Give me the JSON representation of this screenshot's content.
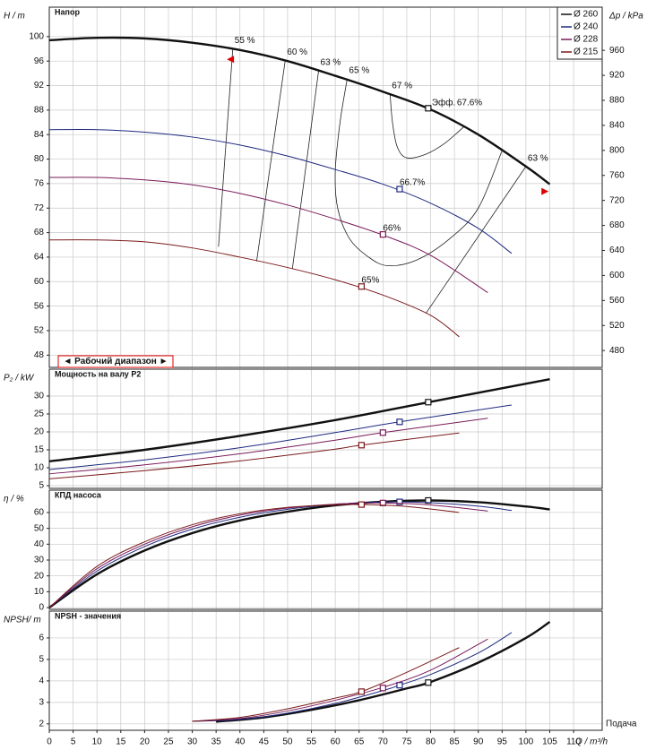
{
  "chart_data": [
    {
      "type": "line",
      "title": "Напор",
      "ylabel": "H / m",
      "y2label": "Δp / kPa",
      "xlim": [
        0,
        116
      ],
      "ylim": [
        46,
        104.8
      ],
      "yticks": [
        48,
        52,
        56,
        60,
        64,
        68,
        72,
        76,
        80,
        84,
        88,
        92,
        96,
        100
      ],
      "y2lim": [
        453,
        1029
      ],
      "y2ticks": [
        480,
        520,
        560,
        600,
        640,
        680,
        720,
        760,
        800,
        840,
        880,
        920,
        960
      ],
      "grid": true,
      "legend": "upper right",
      "annotation": "Эфф.",
      "series": [
        {
          "name": "Ø 260",
          "color": "#111111",
          "x": [
            0,
            10,
            20,
            30,
            40,
            50,
            60,
            70,
            80,
            90,
            100,
            105
          ],
          "values": [
            99.4,
            99.8,
            99.7,
            99.0,
            97.8,
            96.0,
            93.6,
            91.0,
            88.1,
            84.0,
            78.8,
            75.9
          ],
          "marker_x": 79.5,
          "marker_value": 88.3,
          "marker_label": "67.6%"
        },
        {
          "name": "Ø 240",
          "color": "#1f2a80",
          "x": [
            0,
            10,
            20,
            30,
            40,
            50,
            60,
            70,
            80,
            90,
            97
          ],
          "values": [
            84.8,
            84.8,
            84.4,
            83.6,
            82.3,
            80.5,
            78.3,
            75.9,
            72.8,
            68.7,
            64.6
          ],
          "marker_x": 73.5,
          "marker_value": 75.1,
          "marker_label": "66.7%"
        },
        {
          "name": "Ø 228",
          "color": "#7a1a5a",
          "x": [
            0,
            10,
            20,
            30,
            40,
            50,
            60,
            70,
            80,
            92
          ],
          "values": [
            77.0,
            77.0,
            76.6,
            75.8,
            74.4,
            72.5,
            70.2,
            67.6,
            64.3,
            58.2
          ],
          "marker_x": 70,
          "marker_value": 67.7,
          "marker_label": "66%"
        },
        {
          "name": "Ø 215",
          "color": "#7a1a1a",
          "x": [
            0,
            10,
            20,
            30,
            40,
            50,
            60,
            70,
            80,
            86
          ],
          "values": [
            66.8,
            66.8,
            66.5,
            65.5,
            64.0,
            62.3,
            60.3,
            57.8,
            54.5,
            51.0
          ],
          "marker_x": 65.5,
          "marker_value": 59.2,
          "marker_label": "65%"
        }
      ],
      "iso_lines": [
        {
          "label": "55 %",
          "x": [
            38.5,
            35.5
          ],
          "values": [
            98.0,
            65.7
          ]
        },
        {
          "label": "60 %",
          "x": [
            49.5,
            43.5
          ],
          "values": [
            96.1,
            63.3
          ]
        },
        {
          "label": "63 %",
          "x": [
            56.5,
            51
          ],
          "values": [
            94.4,
            62.1
          ]
        },
        {
          "label": "65 %",
          "x": [
            62.5,
            61,
            60,
            60.5,
            63,
            67,
            71,
            77,
            84,
            90,
            95
          ],
          "values": [
            93.1,
            86,
            78,
            72,
            67,
            64,
            62.6,
            63.5,
            67,
            72,
            81.4
          ]
        },
        {
          "label": "67 %",
          "x": [
            71.5,
            72,
            73,
            75,
            79,
            83,
            87
          ],
          "values": [
            90.6,
            86,
            82,
            80.2,
            80.8,
            82.6,
            85.3
          ]
        },
        {
          "label": "63 %",
          "x": [
            100,
            79
          ],
          "values": [
            78.8,
            54.8
          ]
        }
      ],
      "working_range": {
        "label": "◄ Рабочий диапазон ►",
        "x": [
          38,
          104
        ]
      }
    },
    {
      "type": "line",
      "title": "Мощность на валу P2",
      "ylabel": "P₂ / kW",
      "xlim": [
        0,
        116
      ],
      "ylim": [
        4.25,
        37.5
      ],
      "yticks": [
        5,
        10,
        15,
        20,
        25,
        30
      ],
      "grid": true,
      "series": [
        {
          "color": "#111111",
          "x": [
            0,
            20,
            40,
            60,
            80,
            105
          ],
          "values": [
            11.8,
            15.0,
            18.9,
            23.3,
            28.4,
            34.7
          ],
          "marker_x": 79.5,
          "marker_value": 28.3
        },
        {
          "color": "#1f2a80",
          "x": [
            0,
            20,
            40,
            60,
            73.5,
            97
          ],
          "values": [
            9.5,
            12.2,
            15.6,
            19.8,
            22.8,
            27.5
          ],
          "marker_x": 73.5,
          "marker_value": 22.8
        },
        {
          "color": "#7a1a5a",
          "x": [
            0,
            20,
            40,
            60,
            70,
            92
          ],
          "values": [
            8.3,
            10.8,
            13.9,
            17.7,
            19.8,
            23.8
          ],
          "marker_x": 70,
          "marker_value": 19.8
        },
        {
          "color": "#7a1a1a",
          "x": [
            0,
            20,
            40,
            60,
            65.5,
            86
          ],
          "values": [
            6.9,
            9.2,
            11.9,
            15.2,
            16.3,
            19.7
          ],
          "marker_x": 65.5,
          "marker_value": 16.3
        }
      ]
    },
    {
      "type": "line",
      "title": "КПД насоса",
      "ylabel": "η / %",
      "xlim": [
        0,
        116
      ],
      "ylim": [
        -1.1,
        74.1
      ],
      "yticks": [
        0,
        10,
        20,
        30,
        40,
        50,
        60
      ],
      "grid": true,
      "series": [
        {
          "color": "#111111",
          "x": [
            0,
            10,
            20,
            30,
            40,
            50,
            60,
            70,
            80,
            90,
            100,
            105
          ],
          "values": [
            0,
            21,
            36,
            47,
            55,
            60.5,
            64.5,
            66.8,
            67.6,
            66.5,
            63.8,
            61.9
          ],
          "marker_x": 79.5,
          "marker_value": 67.6
        },
        {
          "color": "#1f2a80",
          "x": [
            0,
            10,
            20,
            30,
            40,
            50,
            60,
            70,
            80,
            90,
            97
          ],
          "values": [
            0,
            23,
            38.5,
            49.5,
            57,
            62,
            65.1,
            66.6,
            66.2,
            64,
            61.3
          ],
          "marker_x": 73.5,
          "marker_value": 66.7
        },
        {
          "color": "#7a1a5a",
          "x": [
            0,
            10,
            20,
            30,
            40,
            50,
            60,
            70,
            80,
            92
          ],
          "values": [
            0,
            24.5,
            40,
            51,
            58.3,
            62.8,
            65.3,
            66,
            64.8,
            60.9
          ],
          "marker_x": 70,
          "marker_value": 66
        },
        {
          "color": "#7a1a1a",
          "x": [
            0,
            10,
            20,
            30,
            40,
            50,
            60,
            65.5,
            75,
            86
          ],
          "values": [
            0,
            26,
            41.5,
            52.3,
            59.2,
            63.2,
            64.8,
            65,
            63.8,
            60
          ],
          "marker_x": 65.5,
          "marker_value": 65
        }
      ]
    },
    {
      "type": "line",
      "title": "NPSH - значения",
      "ylabel": "NPSH/ m",
      "xlabel": "Q / m³/h",
      "annotation": "Подача",
      "xlim": [
        0,
        116
      ],
      "xticks": [
        0,
        5,
        10,
        15,
        20,
        25,
        30,
        35,
        40,
        45,
        50,
        55,
        60,
        65,
        70,
        75,
        80,
        85,
        90,
        95,
        100,
        105,
        110
      ],
      "ylim": [
        1.7,
        7.25
      ],
      "yticks": [
        2,
        3,
        4,
        5,
        6
      ],
      "grid": true,
      "series": [
        {
          "color": "#111111",
          "x": [
            35,
            45,
            55,
            65,
            75,
            80,
            90,
            100,
            105
          ],
          "values": [
            2.1,
            2.3,
            2.65,
            3.1,
            3.65,
            3.95,
            4.85,
            6.0,
            6.75
          ],
          "marker_x": 79.5,
          "marker_value": 3.92
        },
        {
          "color": "#1f2a80",
          "x": [
            30,
            40,
            50,
            60,
            70,
            73.5,
            80,
            90,
            97
          ],
          "values": [
            2.12,
            2.2,
            2.5,
            2.95,
            3.55,
            3.8,
            4.3,
            5.3,
            6.25
          ],
          "marker_x": 73.5,
          "marker_value": 3.8
        },
        {
          "color": "#7a1a5a",
          "x": [
            30,
            40,
            50,
            60,
            70,
            80,
            92
          ],
          "values": [
            2.12,
            2.25,
            2.6,
            3.1,
            3.7,
            4.5,
            5.95
          ],
          "marker_x": 70,
          "marker_value": 3.67
        },
        {
          "color": "#7a1a1a",
          "x": [
            30,
            40,
            50,
            60,
            65.5,
            75,
            86
          ],
          "values": [
            2.12,
            2.3,
            2.7,
            3.2,
            3.5,
            4.4,
            5.55
          ],
          "marker_x": 65.5,
          "marker_value": 3.5
        }
      ]
    }
  ]
}
